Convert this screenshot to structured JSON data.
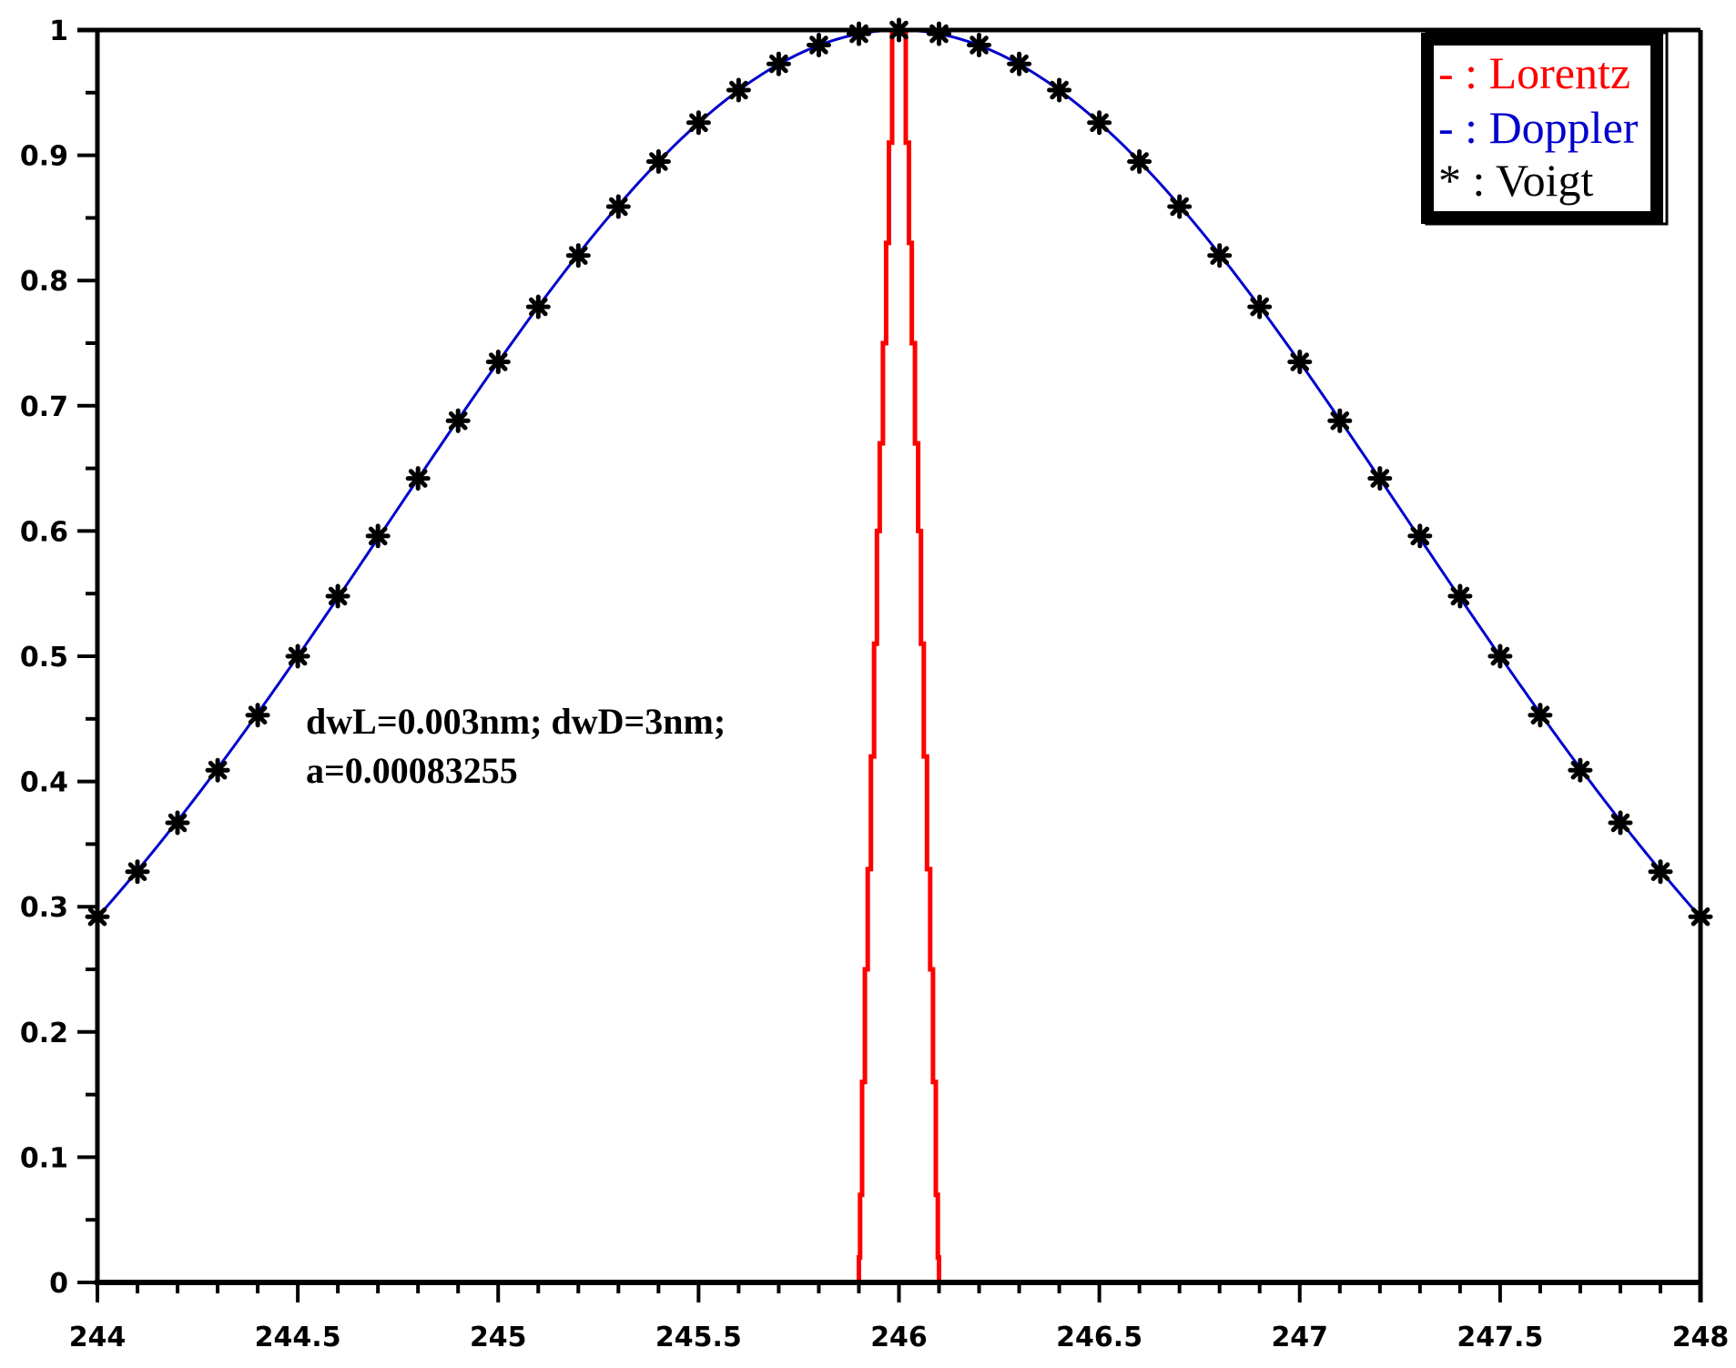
{
  "chart_data": {
    "type": "line",
    "title": "",
    "xlabel": "",
    "ylabel": "",
    "xlim": [
      244,
      248
    ],
    "ylim": [
      0,
      1
    ],
    "grid": false,
    "legend_position": "top-right",
    "x_ticks": [
      "244",
      "244.5",
      "245",
      "245.5",
      "246",
      "246.5",
      "247",
      "247.5",
      "248"
    ],
    "x_tick_values": [
      244,
      244.5,
      245,
      245.5,
      246,
      246.5,
      247,
      247.5,
      248
    ],
    "y_ticks": [
      "0",
      "0.1",
      "0.2",
      "0.3",
      "0.4",
      "0.5",
      "0.6",
      "0.7",
      "0.8",
      "0.9",
      "1"
    ],
    "y_tick_values": [
      0,
      0.1,
      0.2,
      0.3,
      0.4,
      0.5,
      0.6,
      0.7,
      0.8,
      0.9,
      1
    ],
    "legend": [
      {
        "symbol": "-",
        "sep": " : ",
        "label": "Lorentz",
        "color": "#ff0000"
      },
      {
        "symbol": "-",
        "sep": " : ",
        "label": "Doppler",
        "color": "#0000cc"
      },
      {
        "symbol": "*",
        "sep": " : ",
        "label": "Voigt",
        "color": "#000000"
      }
    ],
    "annotation": [
      "dwL=0.003nm; dwD=3nm;",
      "a=0.00083255"
    ],
    "series": [
      {
        "name": "Lorentz",
        "color": "#ff0000",
        "style": "step",
        "center": 246,
        "x": [
          245.9,
          245.9,
          245.91,
          245.92,
          245.93,
          245.94,
          245.95,
          245.96,
          245.97,
          245.98,
          245.99,
          246.0,
          246.01,
          246.02,
          246.03,
          246.04,
          246.05,
          246.06,
          246.07,
          246.08,
          246.09,
          246.1,
          246.1
        ],
        "values": [
          0,
          0.02,
          0.07,
          0.16,
          0.25,
          0.33,
          0.42,
          0.51,
          0.6,
          0.67,
          0.91,
          1.0,
          0.91,
          0.67,
          0.6,
          0.51,
          0.42,
          0.33,
          0.25,
          0.16,
          0.07,
          0.02,
          0
        ]
      },
      {
        "name": "Doppler",
        "color": "#0000cc",
        "style": "line",
        "center": 246,
        "fwhm": 3,
        "x": [
          244.0,
          244.1,
          244.2,
          244.3,
          244.4,
          244.5,
          244.6,
          244.7,
          244.8,
          244.9,
          245.0,
          245.1,
          245.2,
          245.3,
          245.4,
          245.5,
          245.6,
          245.7,
          245.8,
          245.9,
          246.0,
          246.1,
          246.2,
          246.3,
          246.4,
          246.5,
          246.6,
          246.7,
          246.8,
          246.9,
          247.0,
          247.1,
          247.2,
          247.3,
          247.4,
          247.5,
          247.6,
          247.7,
          247.8,
          247.9,
          248.0
        ],
        "values": [
          0.292,
          0.328,
          0.367,
          0.409,
          0.453,
          0.5,
          0.548,
          0.596,
          0.642,
          0.688,
          0.735,
          0.779,
          0.82,
          0.859,
          0.895,
          0.926,
          0.952,
          0.973,
          0.988,
          0.997,
          1.0,
          0.997,
          0.988,
          0.973,
          0.952,
          0.926,
          0.895,
          0.859,
          0.82,
          0.779,
          0.735,
          0.688,
          0.642,
          0.596,
          0.548,
          0.5,
          0.453,
          0.409,
          0.367,
          0.328,
          0.292
        ]
      },
      {
        "name": "Voigt",
        "color": "#000000",
        "style": "markers",
        "marker": "*",
        "x": [
          244.0,
          244.1,
          244.2,
          244.3,
          244.4,
          244.5,
          244.6,
          244.7,
          244.8,
          244.9,
          245.0,
          245.1,
          245.2,
          245.3,
          245.4,
          245.5,
          245.6,
          245.7,
          245.8,
          245.9,
          246.0,
          246.1,
          246.2,
          246.3,
          246.4,
          246.5,
          246.6,
          246.7,
          246.8,
          246.9,
          247.0,
          247.1,
          247.2,
          247.3,
          247.4,
          247.5,
          247.6,
          247.7,
          247.8,
          247.9,
          248.0
        ],
        "values": [
          0.292,
          0.328,
          0.367,
          0.409,
          0.453,
          0.5,
          0.548,
          0.596,
          0.642,
          0.688,
          0.735,
          0.779,
          0.82,
          0.859,
          0.895,
          0.926,
          0.952,
          0.973,
          0.988,
          0.997,
          1.0,
          0.997,
          0.988,
          0.973,
          0.952,
          0.926,
          0.895,
          0.859,
          0.82,
          0.779,
          0.735,
          0.688,
          0.642,
          0.596,
          0.548,
          0.5,
          0.453,
          0.409,
          0.367,
          0.328,
          0.292
        ]
      }
    ]
  }
}
